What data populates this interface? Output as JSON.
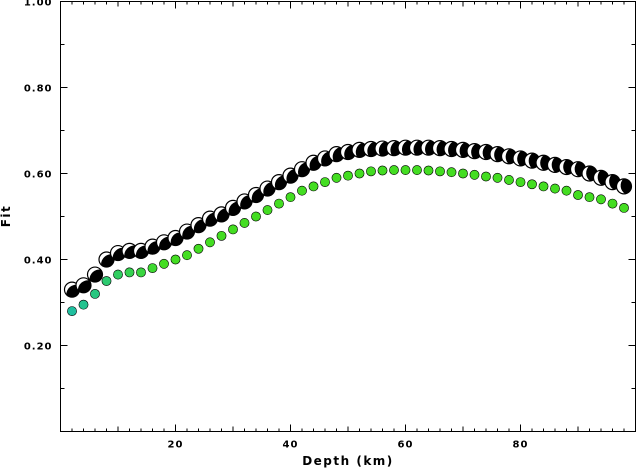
{
  "chart_data": {
    "type": "scatter",
    "xlabel": "Depth (km)",
    "ylabel": "Fit",
    "xlim": [
      0,
      100
    ],
    "ylim": [
      0,
      1.0
    ],
    "x_ticks": [
      20,
      40,
      60,
      80
    ],
    "x_tick_labels": [
      "20",
      "40",
      "60",
      "80"
    ],
    "y_ticks": [
      0.2,
      0.4,
      0.6,
      0.8,
      1.0
    ],
    "y_tick_labels": [
      "0.20",
      "0.40",
      "0.60",
      "0.80",
      "1.00"
    ],
    "grid": false,
    "series": [
      {
        "marker": "beachball",
        "color": "#000000",
        "x": [
          2,
          4,
          6,
          8,
          10,
          12,
          14,
          16,
          18,
          20,
          22,
          24,
          26,
          28,
          30,
          32,
          34,
          36,
          38,
          40,
          42,
          44,
          46,
          48,
          50,
          52,
          54,
          56,
          58,
          60,
          62,
          64,
          66,
          68,
          70,
          72,
          74,
          76,
          78,
          80,
          82,
          84,
          86,
          88,
          90,
          92,
          94,
          96,
          98
        ],
        "y": [
          0.33,
          0.34,
          0.365,
          0.4,
          0.415,
          0.42,
          0.42,
          0.43,
          0.44,
          0.45,
          0.465,
          0.48,
          0.495,
          0.505,
          0.52,
          0.535,
          0.55,
          0.565,
          0.58,
          0.595,
          0.61,
          0.625,
          0.635,
          0.645,
          0.65,
          0.655,
          0.657,
          0.658,
          0.659,
          0.66,
          0.66,
          0.66,
          0.659,
          0.657,
          0.655,
          0.652,
          0.65,
          0.645,
          0.64,
          0.635,
          0.63,
          0.625,
          0.62,
          0.615,
          0.61,
          0.6,
          0.59,
          0.58,
          0.57
        ]
      },
      {
        "marker": "dot",
        "color_start": "#1fbf9f",
        "color_end": "#44dd22",
        "x": [
          2,
          4,
          6,
          8,
          10,
          12,
          14,
          16,
          18,
          20,
          22,
          24,
          26,
          28,
          30,
          32,
          34,
          36,
          38,
          40,
          42,
          44,
          46,
          48,
          50,
          52,
          54,
          56,
          58,
          60,
          62,
          64,
          66,
          68,
          70,
          72,
          74,
          76,
          78,
          80,
          82,
          84,
          86,
          88,
          90,
          92,
          94,
          96,
          98
        ],
        "y": [
          0.28,
          0.295,
          0.32,
          0.35,
          0.365,
          0.37,
          0.37,
          0.38,
          0.39,
          0.4,
          0.41,
          0.425,
          0.44,
          0.455,
          0.47,
          0.485,
          0.5,
          0.515,
          0.53,
          0.545,
          0.56,
          0.57,
          0.58,
          0.59,
          0.595,
          0.6,
          0.605,
          0.607,
          0.608,
          0.608,
          0.608,
          0.607,
          0.605,
          0.603,
          0.6,
          0.597,
          0.593,
          0.59,
          0.585,
          0.58,
          0.575,
          0.57,
          0.565,
          0.56,
          0.55,
          0.545,
          0.54,
          0.53,
          0.52
        ]
      }
    ]
  }
}
